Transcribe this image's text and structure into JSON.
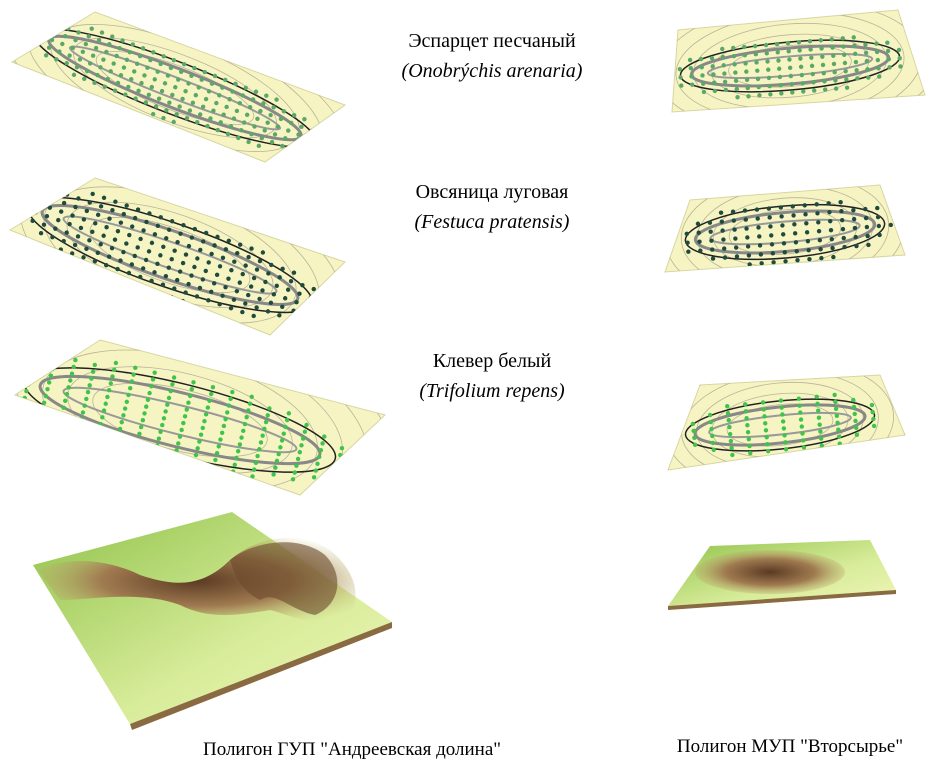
{
  "species": [
    {
      "name": "Эспарцет песчаный",
      "latin": "(Onobrýchis arenaria)"
    },
    {
      "name": "Овсяница луговая",
      "latin": "(Festuca pratensis)"
    },
    {
      "name": "Клевер белый",
      "latin": "(Trifolium repens)"
    }
  ],
  "captions": [
    "Полигон ГУП \"Андреевская долина\"",
    "Полигон МУП \"Вторсырье\""
  ]
}
